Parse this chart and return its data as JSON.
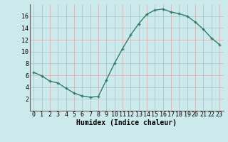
{
  "x": [
    0,
    1,
    2,
    3,
    4,
    5,
    6,
    7,
    8,
    9,
    10,
    11,
    12,
    13,
    14,
    15,
    16,
    17,
    18,
    19,
    20,
    21,
    22,
    23
  ],
  "y": [
    6.5,
    5.9,
    5.0,
    4.7,
    3.8,
    3.0,
    2.5,
    2.3,
    2.4,
    5.2,
    8.0,
    10.5,
    12.8,
    14.7,
    16.3,
    17.0,
    17.2,
    16.7,
    16.4,
    16.0,
    15.0,
    13.8,
    12.3,
    11.2
  ],
  "xlabel": "Humidex (Indice chaleur)",
  "bg_color": "#cce9eb",
  "line_color": "#2e7d6e",
  "grid_color": "#c0d8d8",
  "ylim": [
    0,
    18
  ],
  "xlim": [
    -0.5,
    23.5
  ],
  "yticks": [
    2,
    4,
    6,
    8,
    10,
    12,
    14,
    16
  ],
  "xticks": [
    0,
    1,
    2,
    3,
    4,
    5,
    6,
    7,
    8,
    9,
    10,
    11,
    12,
    13,
    14,
    15,
    16,
    17,
    18,
    19,
    20,
    21,
    22,
    23
  ],
  "xlabel_fontsize": 7,
  "tick_fontsize": 6
}
